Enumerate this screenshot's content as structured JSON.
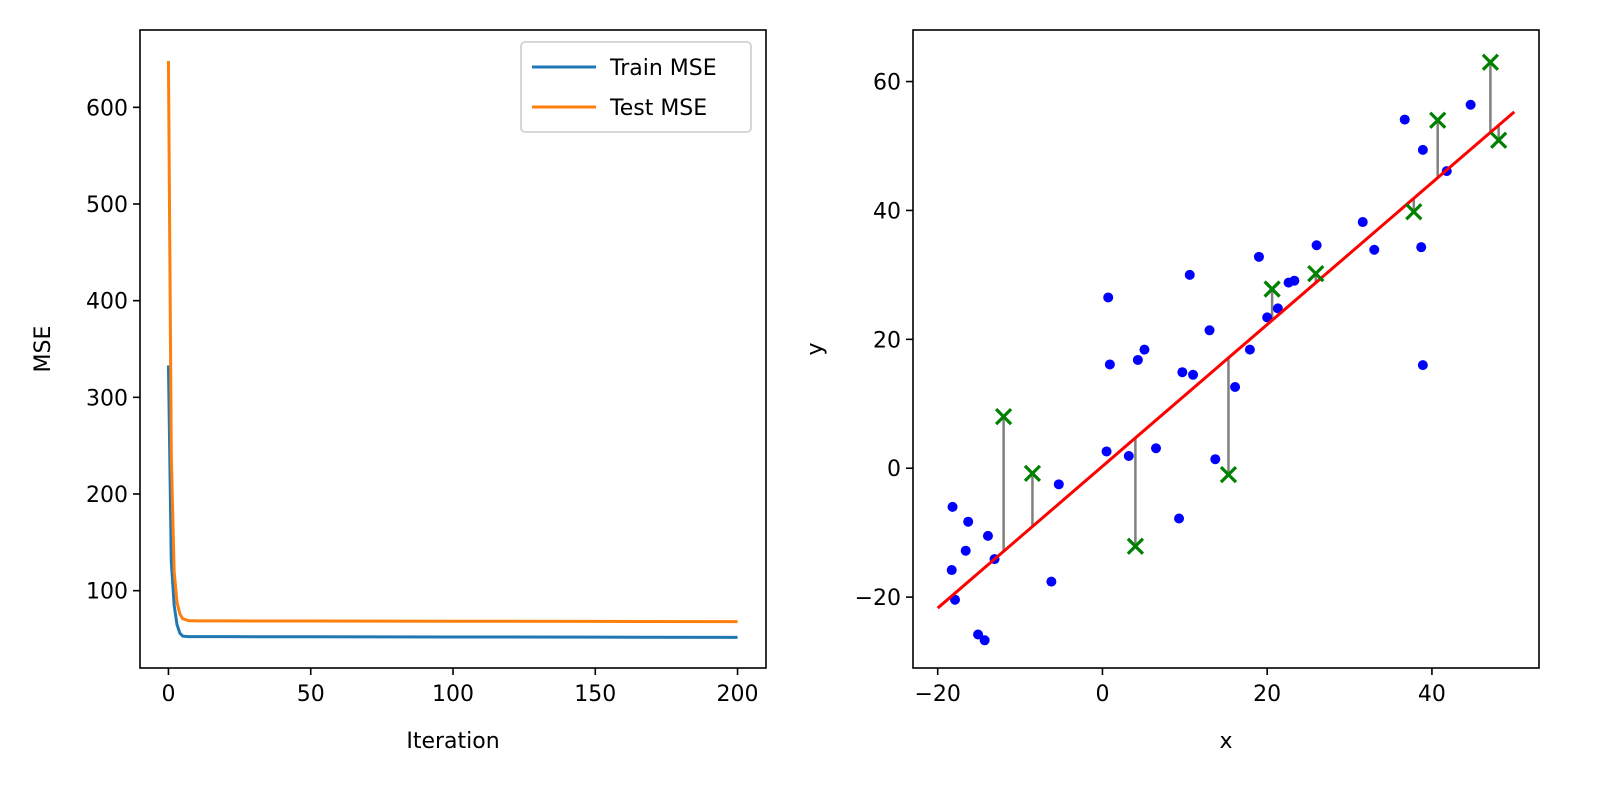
{
  "colors": {
    "train": "#1f77b4",
    "test": "#ff7f0e",
    "points": "#0000ff",
    "fit": "#ff0000",
    "test_points": "#008000",
    "residual": "#808080"
  },
  "chart_data": [
    {
      "type": "line",
      "title": "",
      "xlabel": "Iteration",
      "ylabel": "MSE",
      "xlim": [
        -10,
        210
      ],
      "ylim": [
        20,
        680
      ],
      "xticks": [
        0,
        50,
        100,
        150,
        200
      ],
      "yticks": [
        100,
        200,
        300,
        400,
        500,
        600
      ],
      "legend": "top-right",
      "grid": false,
      "series": [
        {
          "name": "Train MSE",
          "x": [
            0,
            1,
            2,
            3,
            4,
            5,
            7,
            10,
            20,
            50,
            100,
            150,
            200
          ],
          "y": [
            333,
            130,
            85,
            65,
            56,
            53,
            52.5,
            52.5,
            52.4,
            52.3,
            52.1,
            51.9,
            51.7
          ]
        },
        {
          "name": "Test MSE",
          "x": [
            0,
            1,
            2,
            3,
            4,
            5,
            7,
            10,
            20,
            50,
            100,
            150,
            200
          ],
          "y": [
            648,
            240,
            120,
            88,
            76,
            71,
            69,
            68.8,
            68.7,
            68.6,
            68.4,
            68.2,
            68.0
          ]
        }
      ]
    },
    {
      "type": "scatter",
      "title": "",
      "xlabel": "x",
      "ylabel": "y",
      "xlim": [
        -23,
        53
      ],
      "ylim": [
        -31,
        68
      ],
      "xticks": [
        -20,
        0,
        20,
        40
      ],
      "yticks": [
        -20,
        0,
        20,
        40,
        60
      ],
      "grid": false,
      "fit_line": {
        "x": [
          -20,
          50
        ],
        "y": [
          -21.7,
          55.3
        ]
      },
      "train_points": [
        [
          -18.2,
          -6.0
        ],
        [
          -18.3,
          -15.8
        ],
        [
          -17.9,
          -20.4
        ],
        [
          -16.6,
          -12.8
        ],
        [
          -16.3,
          -8.3
        ],
        [
          -15.1,
          -25.8
        ],
        [
          -14.3,
          -26.7
        ],
        [
          -13.9,
          -10.5
        ],
        [
          -13.1,
          -14.1
        ],
        [
          -6.2,
          -17.6
        ],
        [
          -5.3,
          -2.5
        ],
        [
          0.5,
          2.6
        ],
        [
          0.7,
          26.5
        ],
        [
          0.9,
          16.1
        ],
        [
          3.2,
          1.9
        ],
        [
          4.3,
          16.8
        ],
        [
          5.1,
          18.4
        ],
        [
          6.5,
          3.1
        ],
        [
          9.3,
          -7.8
        ],
        [
          9.7,
          14.9
        ],
        [
          10.6,
          30.0
        ],
        [
          11.0,
          14.5
        ],
        [
          13.0,
          21.4
        ],
        [
          13.7,
          1.4
        ],
        [
          16.1,
          12.6
        ],
        [
          17.9,
          18.4
        ],
        [
          19.0,
          32.8
        ],
        [
          20.0,
          23.4
        ],
        [
          21.3,
          24.8
        ],
        [
          22.6,
          28.8
        ],
        [
          23.3,
          29.1
        ],
        [
          26.0,
          34.6
        ],
        [
          31.6,
          38.2
        ],
        [
          33.0,
          33.9
        ],
        [
          36.7,
          54.1
        ],
        [
          38.7,
          34.3
        ],
        [
          38.9,
          49.4
        ],
        [
          38.9,
          16.0
        ],
        [
          41.8,
          46.1
        ],
        [
          44.7,
          56.4
        ]
      ],
      "test_points": [
        [
          -12.0,
          8.0
        ],
        [
          -8.5,
          -0.8
        ],
        [
          4.0,
          -12.1
        ],
        [
          15.3,
          -1.0
        ],
        [
          20.6,
          27.8
        ],
        [
          25.9,
          30.2
        ],
        [
          37.8,
          39.8
        ],
        [
          40.7,
          54.0
        ],
        [
          47.1,
          63.0
        ],
        [
          48.1,
          50.9
        ]
      ]
    }
  ]
}
